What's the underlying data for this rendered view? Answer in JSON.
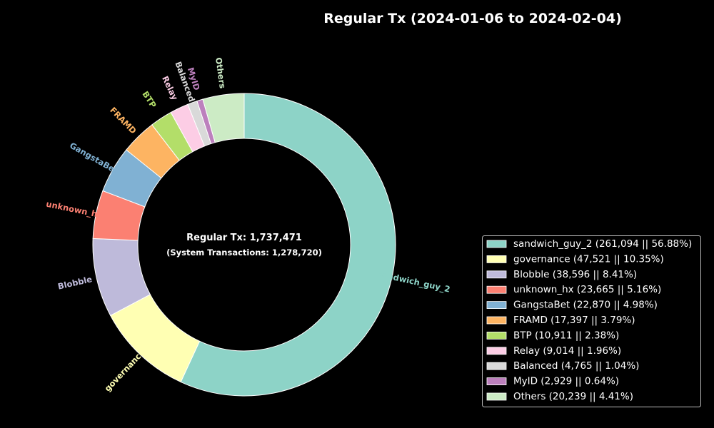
{
  "chart_data": {
    "type": "pie",
    "variant": "donut",
    "title": "Regular Tx (2024-01-06 to 2024-02-04)",
    "center_text": "Regular Tx: 1,737,471",
    "center_subtext": "(System Transactions: 1,278,720)",
    "legend_position": "lower-right",
    "slices": [
      {
        "label": "sandwich_guy_2",
        "value": 261094,
        "percent": 56.88,
        "color": "#8dd3c7",
        "legend": "sandwich_guy_2 (261,094 || 56.88%)"
      },
      {
        "label": "governance",
        "value": 47521,
        "percent": 10.35,
        "color": "#ffffb3",
        "legend": "governance (47,521 || 10.35%)"
      },
      {
        "label": "Blobble",
        "value": 38596,
        "percent": 8.41,
        "color": "#bebada",
        "legend": "Blobble (38,596 || 8.41%)"
      },
      {
        "label": "unknown_hx",
        "value": 23665,
        "percent": 5.16,
        "color": "#fb8072",
        "legend": "unknown_hx (23,665 || 5.16%)"
      },
      {
        "label": "GangstaBet",
        "value": 22870,
        "percent": 4.98,
        "color": "#80b1d3",
        "legend": "GangstaBet (22,870 || 4.98%)"
      },
      {
        "label": "FRAMD",
        "value": 17397,
        "percent": 3.79,
        "color": "#fdb462",
        "legend": "FRAMD (17,397 || 3.79%)"
      },
      {
        "label": "BTP",
        "value": 10911,
        "percent": 2.38,
        "color": "#b3de69",
        "legend": "BTP (10,911 || 2.38%)"
      },
      {
        "label": "Relay",
        "value": 9014,
        "percent": 1.96,
        "color": "#fccde5",
        "legend": "Relay (9,014 || 1.96%)"
      },
      {
        "label": "Balanced",
        "value": 4765,
        "percent": 1.04,
        "color": "#d9d9d9",
        "legend": "Balanced (4,765 || 1.04%)"
      },
      {
        "label": "MyID",
        "value": 2929,
        "percent": 0.64,
        "color": "#bc80bd",
        "legend": "MyID (2,929 || 0.64%)"
      },
      {
        "label": "Others",
        "value": 20239,
        "percent": 4.41,
        "color": "#ccebc5",
        "legend": "Others (20,239 || 4.41%)"
      }
    ]
  }
}
